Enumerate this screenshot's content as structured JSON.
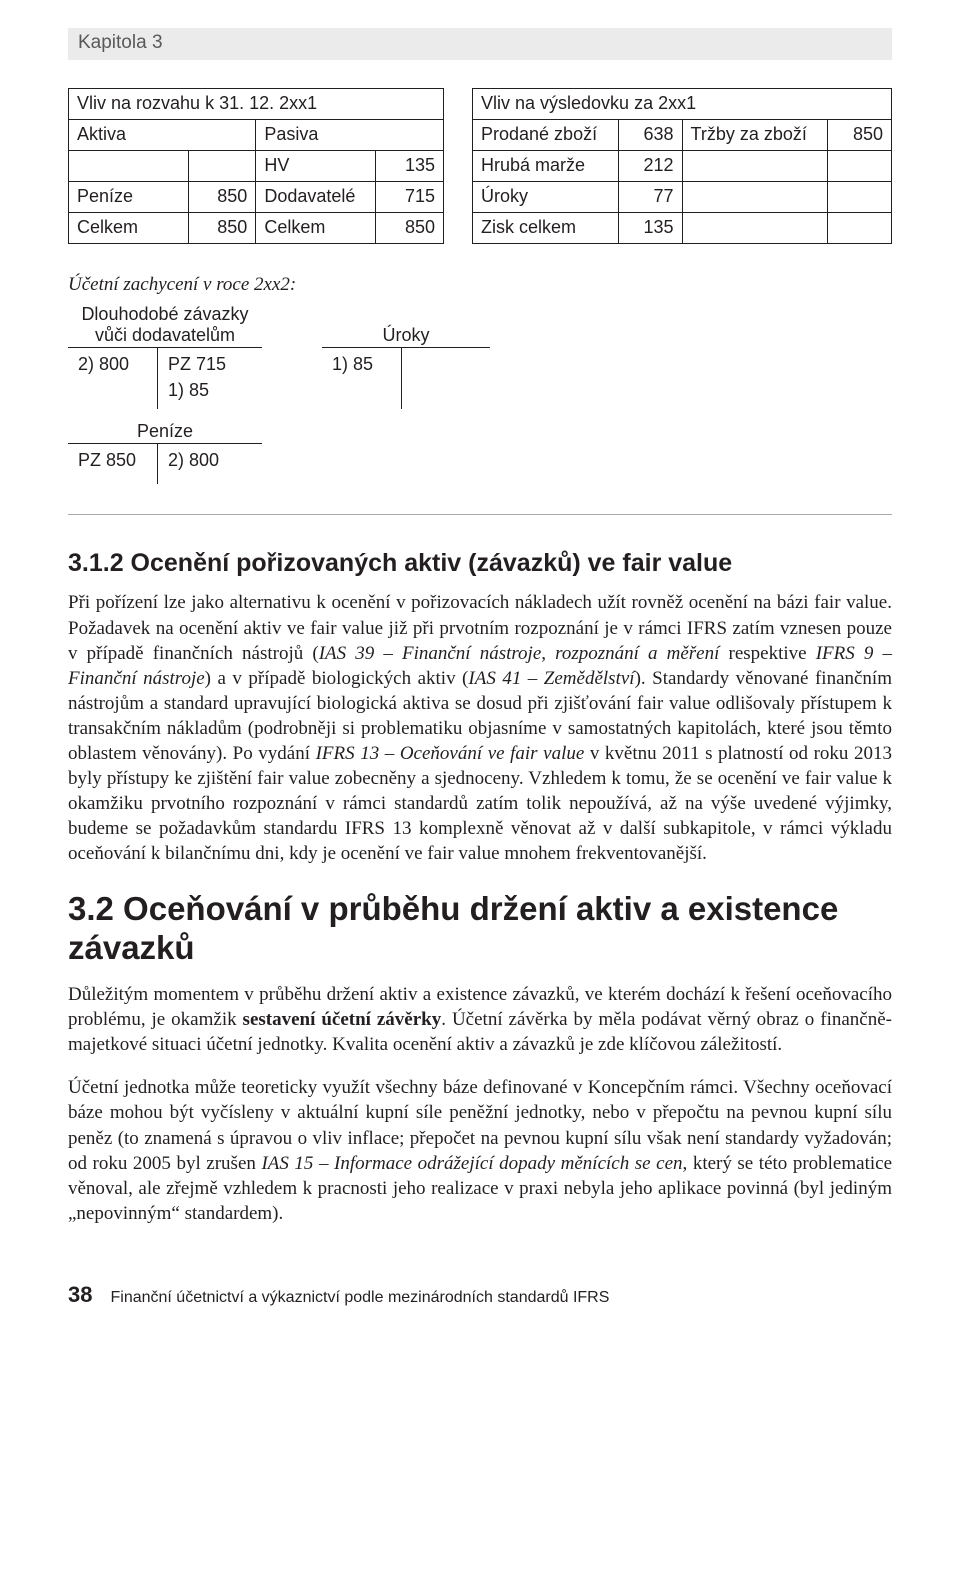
{
  "chapter_label": "Kapitola 3",
  "table_left": {
    "title": "Vliv na rozvahu k 31. 12. 2xx1",
    "header_left": "Aktiva",
    "header_right": "Pasiva",
    "rows": [
      {
        "l_label": "",
        "l_val": "",
        "r_label": "HV",
        "r_val": "135"
      },
      {
        "l_label": "Peníze",
        "l_val": "850",
        "r_label": "Dodavatelé",
        "r_val": "715"
      },
      {
        "l_label": "Celkem",
        "l_val": "850",
        "r_label": "Celkem",
        "r_val": "850"
      }
    ]
  },
  "table_right": {
    "title": "Vliv na výsledovku za 2xx1",
    "rows": [
      {
        "l_label": "Prodané zboží",
        "l_val": "638",
        "r_label": "Tržby za zboží",
        "r_val": "850"
      },
      {
        "l_label": "Hrubá marže",
        "l_val": "212",
        "r_label": "",
        "r_val": ""
      },
      {
        "l_label": "Úroky",
        "l_val": "77",
        "r_label": "",
        "r_val": ""
      },
      {
        "l_label": "Zisk celkem",
        "l_val": "135",
        "r_label": "",
        "r_val": ""
      }
    ]
  },
  "subheading_italic": "Účetní zachycení v roce 2xx2:",
  "tacc_dz": {
    "title_line1": "Dlouhodobé závazky",
    "title_line2": "vůči dodavatelům",
    "left": [
      "2) 800"
    ],
    "right": [
      "PZ 715",
      "1) 85"
    ]
  },
  "tacc_uroky": {
    "title": "Úroky",
    "left": [
      "1) 85"
    ],
    "right": []
  },
  "tacc_penize": {
    "title": "Peníze",
    "left": [
      "PZ 850"
    ],
    "right": [
      "2) 800"
    ]
  },
  "sec312_title": "3.1.2 Ocenění pořizovaných aktiv (závazků) ve fair value",
  "sec312_para": {
    "t1": "Při pořízení lze jako alternativu k ocenění v pořizovacích nákladech užít rovněž ocenění na bázi fair value. Požadavek na ocenění aktiv ve fair value již při prvotním rozpoznání je v rámci IFRS zatím vznesen pouze v případě finančních nástrojů (",
    "i1": "IAS 39 – Finanční nástroje, rozpoznání a měření",
    "t2": " respektive ",
    "i2": "IFRS 9 – Finanční nástroje",
    "t3": ") a v případě biologických aktiv (",
    "i3": "IAS 41 – Zemědělství",
    "t4": "). Standardy věnované finančním nástrojům a standard upravující biologická aktiva se dosud při zjišťování fair value odlišovaly přístupem k transakčním nákladům (podrobněji si problematiku objasníme v samostatných kapitolách, které jsou těmto oblastem věnovány). Po vydání ",
    "i4": "IFRS 13 – Oceňování ve fair value",
    "t5": " v květnu 2011 s platností od roku 2013 byly přístupy ke zjištění fair value zobecněny a sjednoceny. Vzhledem k tomu, že se ocenění ve fair value k okamžiku prvotního rozpoznání v rámci standardů zatím tolik nepoužívá, až na výše uvedené výjimky, budeme se požadavkům standardu IFRS 13 komplexně věnovat až v další subkapitole, v rámci výkladu oceňování k bilančnímu dni, kdy je ocenění ve fair value mnohem frekventovanější."
  },
  "sec32_title": "3.2 Oceňování v průběhu držení aktiv a existence závazků",
  "sec32_p1": {
    "t1": "Důležitým momentem v průběhu držení aktiv a existence závazků, ve kterém dochází k řešení oceňovacího problému, je okamžik ",
    "b1": "sestavení účetní závěrky",
    "t2": ". Účetní závěrka by měla podávat věrný obraz o finančně-majetkové situaci účetní jednotky. Kvalita ocenění aktiv a závazků je zde klíčovou záležitostí."
  },
  "sec32_p2": {
    "t1": "Účetní jednotka může teoreticky využít všechny báze definované v Koncepčním rámci. Všechny oceňovací báze mohou být vyčísleny v aktuální kupní síle peněžní jednotky, nebo v přepočtu na pevnou kupní sílu peněz (to znamená s úpravou o vliv inflace; přepočet na pevnou kupní sílu však není standardy vyžadován; od roku 2005 byl zrušen ",
    "i1": "IAS 15 – Informace odrážející dopady měnících se cen",
    "t2": ", který se této problematice věnoval, ale zřejmě vzhledem k pracnosti jeho realizace v praxi nebyla jeho aplikace povinná (byl jediným „nepovinným“ standardem)."
  },
  "footer_page": "38",
  "footer_title": "Finanční účetnictví a výkaznictví podle mezinárodních standardů IFRS"
}
